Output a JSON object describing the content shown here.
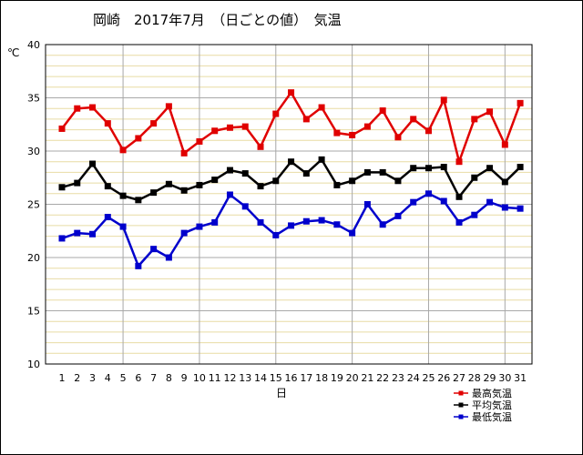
{
  "chart_data": {
    "type": "line",
    "title": "岡崎　2017年7月　（日ごとの値）　気温",
    "unit": "℃",
    "xlabel": "日",
    "ylabel": "",
    "ylim": [
      10,
      40
    ],
    "yticks": [
      10,
      15,
      20,
      25,
      30,
      35,
      40
    ],
    "x": [
      1,
      2,
      3,
      4,
      5,
      6,
      7,
      8,
      9,
      10,
      11,
      12,
      13,
      14,
      15,
      16,
      17,
      18,
      19,
      20,
      21,
      22,
      23,
      24,
      25,
      26,
      27,
      28,
      29,
      30,
      31
    ],
    "grid": true,
    "legend_position": "bottom-right",
    "series": [
      {
        "name": "最高気温",
        "color": "#e00000",
        "values": [
          32.1,
          34.0,
          34.1,
          32.6,
          30.1,
          31.2,
          32.6,
          34.2,
          29.8,
          30.9,
          31.9,
          32.2,
          32.3,
          30.4,
          33.5,
          35.5,
          33.0,
          34.1,
          31.7,
          31.5,
          32.3,
          33.8,
          31.3,
          33.0,
          31.9,
          34.8,
          29.0,
          33.0,
          33.7,
          30.6,
          34.5
        ]
      },
      {
        "name": "平均気温",
        "color": "#000000",
        "values": [
          26.6,
          27.0,
          28.8,
          26.7,
          25.8,
          25.4,
          26.1,
          26.9,
          26.3,
          26.8,
          27.3,
          28.2,
          27.9,
          26.7,
          27.2,
          29.0,
          27.9,
          29.2,
          26.8,
          27.2,
          28.0,
          28.0,
          27.2,
          28.4,
          28.4,
          28.5,
          25.7,
          27.5,
          28.4,
          27.1,
          28.5
        ]
      },
      {
        "name": "最低気温",
        "color": "#0000cc",
        "values": [
          21.8,
          22.3,
          22.2,
          23.8,
          22.9,
          19.2,
          20.8,
          20.0,
          22.3,
          22.9,
          23.3,
          25.9,
          24.8,
          23.3,
          22.1,
          23.0,
          23.4,
          23.5,
          23.1,
          22.3,
          25.0,
          23.1,
          23.9,
          25.2,
          26.0,
          25.3,
          23.3,
          24.0,
          25.2,
          24.7,
          24.6
        ]
      }
    ]
  }
}
